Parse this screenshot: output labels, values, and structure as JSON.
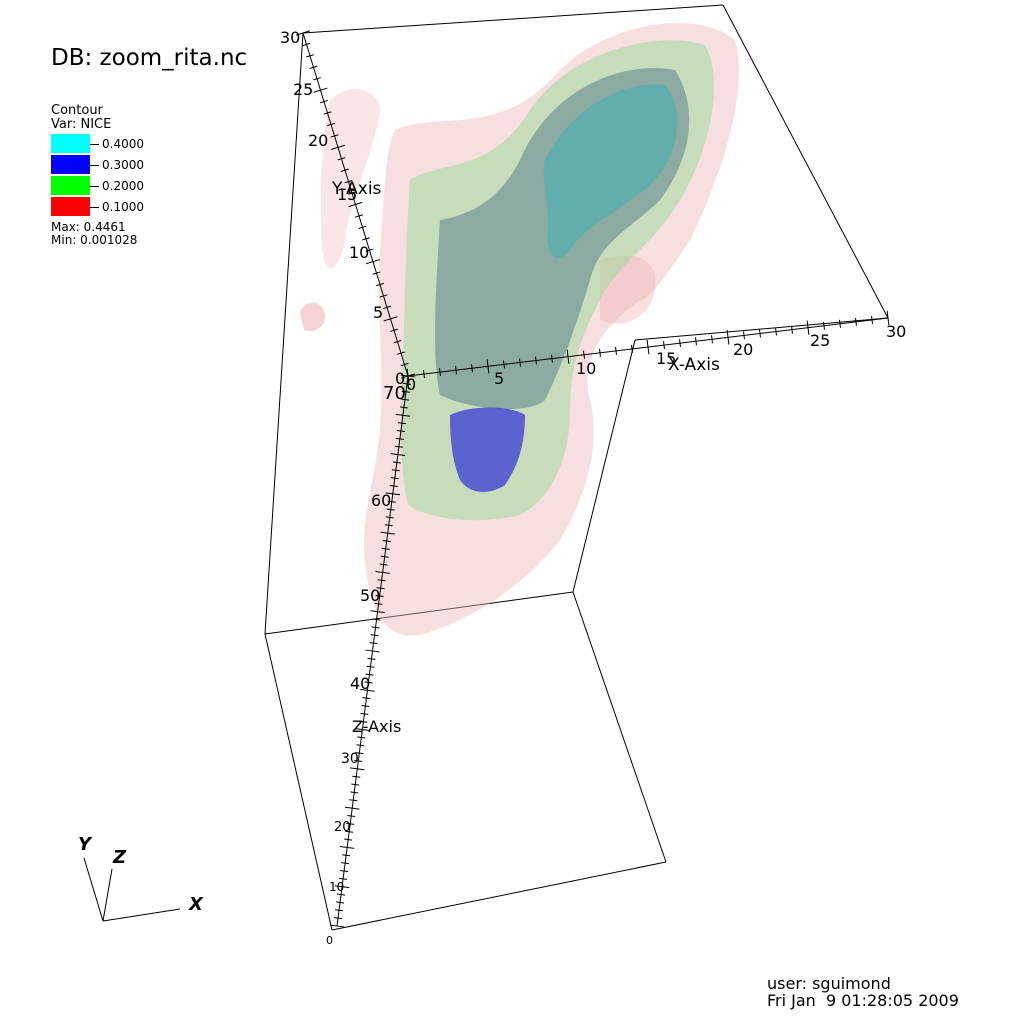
{
  "database_label": "DB: zoom_rita.nc",
  "legend": {
    "title": "Contour",
    "variable": "Var: NICE",
    "levels": [
      {
        "label": "0.4000",
        "color": "#00ffff"
      },
      {
        "label": "0.3000",
        "color": "#0000ff"
      },
      {
        "label": "0.2000",
        "color": "#00ff00"
      },
      {
        "label": "0.1000",
        "color": "#ff0000"
      }
    ],
    "max": "Max:  0.4461",
    "min": "Min:  0.001028"
  },
  "axes": {
    "x_label": "X-Axis",
    "y_label": "Y-Axis",
    "z_label": "Z-Axis",
    "x_ticks": [
      "0",
      "5",
      "10",
      "15",
      "20",
      "25",
      "30"
    ],
    "y_ticks": [
      "0",
      "5",
      "10",
      "15",
      "20",
      "25",
      "30"
    ],
    "z_ticks": [
      "0",
      "10",
      "20",
      "30",
      "40",
      "50",
      "60",
      "70"
    ]
  },
  "triad": {
    "x": "X",
    "y": "Y",
    "z": "Z"
  },
  "footer": {
    "user": "user: sguimond",
    "date": "Fri Jan  9 01:28:05 2009"
  },
  "colors": {
    "outer_shell": "#f2c8c8",
    "green_shell": "#9fd99a",
    "slate_shell": "#6f8f90",
    "blue_core": "#3a3ad8",
    "teal_core": "#40b0b0"
  }
}
